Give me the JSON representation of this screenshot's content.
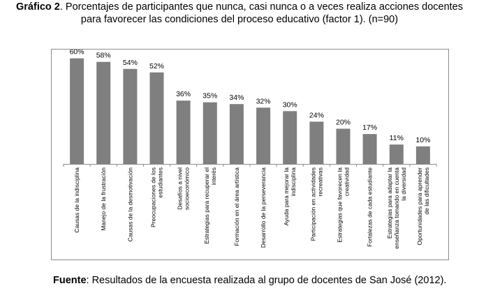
{
  "caption": {
    "label": "Gráfico 2",
    "line1_rest": ". Porcentajes de participantes que nunca, casi nunca o a veces realiza acciones docentes",
    "line2": "para favorecer las condiciones del proceso educativo (factor 1). (n=90)"
  },
  "source": {
    "label": "Fuente",
    "text": ": Resultados de la encuesta realizada al grupo de docentes de San José  (2012)."
  },
  "chart_data": {
    "type": "bar",
    "categories": [
      [
        "Causas de la indisciplina"
      ],
      [
        "Manejo de la frustración"
      ],
      [
        "Causas de la desmotivación"
      ],
      [
        "Preocupaciones de los",
        "estudiantes"
      ],
      [
        "Desafíos a nivel",
        "socioeconómico"
      ],
      [
        "Estrategias para recuperar el",
        "interés"
      ],
      [
        "Formación en el área artística"
      ],
      [
        "Desarrollo de la perseverancia"
      ],
      [
        "Ayuda para mejorar la",
        "indisciplina"
      ],
      [
        "Participación en actividades",
        "recreativas"
      ],
      [
        "Estrategias que favorecen la",
        "creatividad"
      ],
      [
        "Fortalezas de cada estudiante"
      ],
      [
        "Estrategias para adaptar la",
        "enseñanza tomando en cuenta",
        "la diversidad"
      ],
      [
        "Oportunidades para aprender",
        "de las dificultades"
      ]
    ],
    "values": [
      60,
      58,
      54,
      52,
      36,
      35,
      34,
      32,
      30,
      24,
      20,
      17,
      11,
      10
    ],
    "data_labels": [
      "60%",
      "58%",
      "54%",
      "52%",
      "36%",
      "35%",
      "34%",
      "32%",
      "30%",
      "24%",
      "20%",
      "17%",
      "11%",
      "10%"
    ],
    "ylim": [
      0,
      65
    ],
    "bar_color": "#7f7f7f",
    "axis_color": "#8c8c8c",
    "grid": false,
    "legend": false
  }
}
